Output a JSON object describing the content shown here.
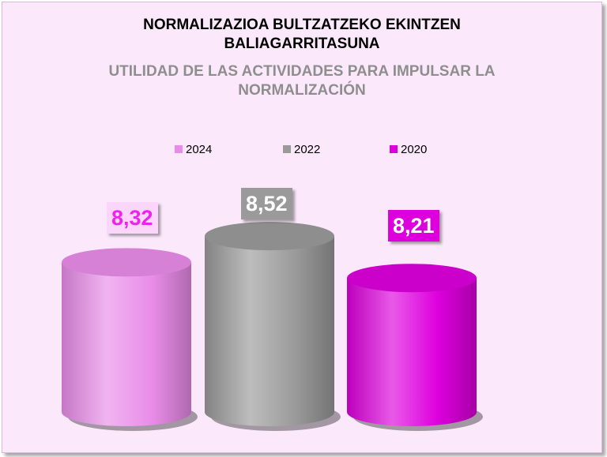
{
  "chart_data": {
    "type": "bar",
    "title": "NORMALIZAZIOA BULTZATZEKO EKINTZEN BALIAGARRITASUNA",
    "subtitle": "UTILIDAD DE LAS ACTIVIDADES PARA IMPULSAR LA NORMALIZACIÓN",
    "title_lines": [
      "NORMALIZAZIOA BULTZATZEKO EKINTZEN",
      "BALIAGARRITASUNA"
    ],
    "subtitle_lines": [
      "UTILIDAD DE LAS ACTIVIDADES PARA IMPULSAR LA",
      "NORMALIZACIÓN"
    ],
    "legend_position": "top",
    "series": [
      {
        "name": "2024",
        "value": 8.32,
        "label": "8,32",
        "color": "#e98ce9",
        "label_color": "#ee22ee",
        "label_bg": "#fbd6fb"
      },
      {
        "name": "2022",
        "value": 8.52,
        "label": "8,52",
        "color": "#9a9a9a",
        "label_color": "#ffffff",
        "label_bg": "#9a9a9a"
      },
      {
        "name": "2020",
        "value": 8.21,
        "label": "8,21",
        "color": "#dd00dd",
        "label_color": "#ffffff",
        "label_bg": "#dd00dd"
      }
    ]
  }
}
